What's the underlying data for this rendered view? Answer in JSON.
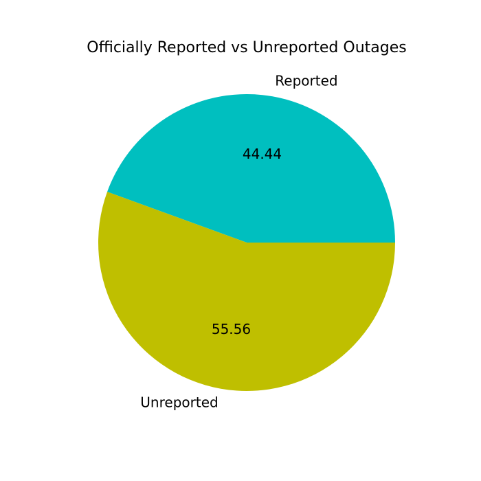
{
  "chart_data": {
    "type": "pie",
    "title": "Officially Reported vs Unreported Outages",
    "slices": [
      {
        "label": "Reported",
        "value": 44.44,
        "value_label": "44.44",
        "color": "#00bfbf"
      },
      {
        "label": "Unreported",
        "value": 55.56,
        "value_label": "55.56",
        "color": "#bfbf00"
      }
    ],
    "start_angle_deg": 0,
    "direction": "counterclockwise"
  }
}
